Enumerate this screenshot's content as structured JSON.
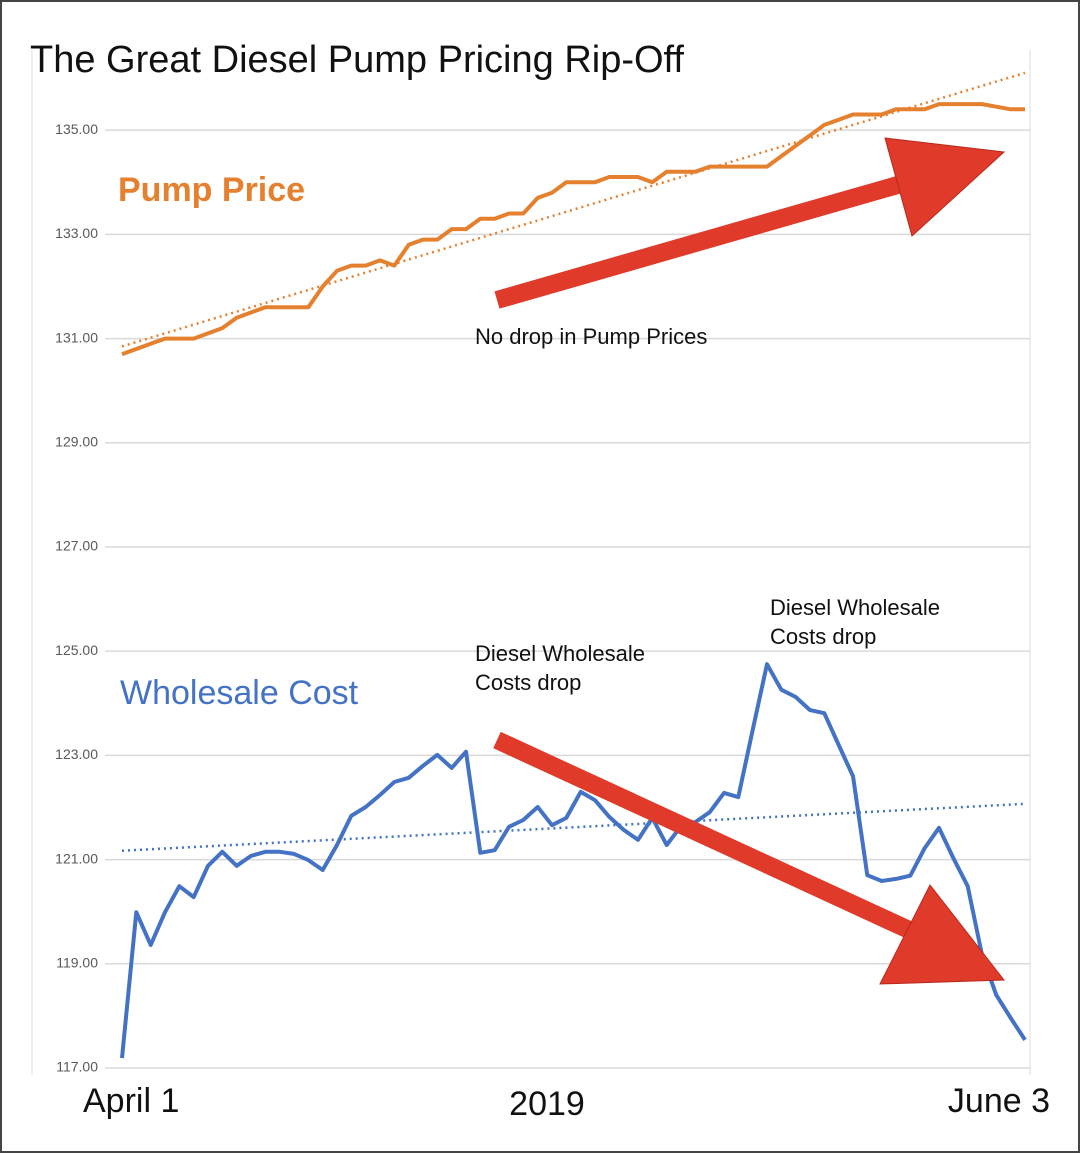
{
  "chart_data": {
    "type": "line",
    "title": "The Great Diesel Pump Pricing Rip-Off",
    "x_axis_label": "2019",
    "categories": [
      "April 1",
      null,
      null,
      null,
      null,
      null,
      null,
      null,
      null,
      null,
      null,
      null,
      null,
      null,
      null,
      null,
      null,
      null,
      null,
      null,
      null,
      null,
      null,
      null,
      null,
      null,
      null,
      null,
      null,
      null,
      null,
      null,
      null,
      null,
      null,
      null,
      null,
      null,
      null,
      null,
      null,
      null,
      null,
      null,
      null,
      null,
      null,
      null,
      null,
      null,
      null,
      null,
      null,
      null,
      null,
      null,
      null,
      null,
      null,
      null,
      null,
      null,
      null,
      "June 3"
    ],
    "series": [
      {
        "name": "Pump Price",
        "color": "#e5802f",
        "values": [
          130.7,
          130.8,
          130.9,
          131.0,
          131.0,
          131.0,
          131.1,
          131.2,
          131.4,
          131.5,
          131.6,
          131.6,
          131.6,
          131.6,
          132.0,
          132.3,
          132.4,
          132.4,
          132.5,
          132.4,
          132.8,
          132.9,
          132.9,
          133.1,
          133.1,
          133.3,
          133.3,
          133.4,
          133.4,
          133.7,
          133.8,
          134.0,
          134.0,
          134.0,
          134.1,
          134.1,
          134.1,
          134.0,
          134.2,
          134.2,
          134.2,
          134.3,
          134.3,
          134.3,
          134.3,
          134.3,
          134.5,
          134.7,
          134.9,
          135.1,
          135.2,
          135.3,
          135.3,
          135.3,
          135.4,
          135.4,
          135.4,
          135.5,
          135.5,
          135.5,
          135.5,
          135.45,
          135.4,
          135.4
        ]
      },
      {
        "name": "Wholesale Cost",
        "color": "#4472c4",
        "values": [
          117.19,
          119.99,
          119.36,
          119.99,
          120.49,
          120.28,
          120.88,
          121.15,
          120.88,
          121.07,
          121.15,
          121.15,
          121.11,
          120.99,
          120.8,
          121.28,
          121.84,
          122.01,
          122.24,
          122.49,
          122.57,
          122.8,
          123.01,
          122.76,
          123.07,
          121.13,
          121.18,
          121.63,
          121.76,
          122.01,
          121.66,
          121.8,
          122.3,
          122.14,
          121.82,
          121.57,
          121.38,
          121.8,
          121.28,
          121.64,
          121.72,
          121.91,
          122.28,
          122.2,
          123.49,
          124.75,
          124.26,
          124.12,
          123.87,
          123.81,
          123.2,
          122.6,
          120.7,
          120.59,
          120.63,
          120.69,
          121.22,
          121.61,
          121.03,
          120.49,
          119.17,
          118.4,
          117.96,
          117.54
        ]
      }
    ],
    "trendlines": [
      {
        "start": 130.85,
        "end": 136.1
      },
      {
        "start": 121.17,
        "end": 122.07
      }
    ],
    "ylim": [
      117,
      136.5
    ],
    "yticks": [
      {
        "value": 117,
        "label": "117.00"
      },
      {
        "value": 119,
        "label": "119.00"
      },
      {
        "value": 121,
        "label": "121.00"
      },
      {
        "value": 123,
        "label": "123.00"
      },
      {
        "value": 125,
        "label": "125.00"
      },
      {
        "value": 127,
        "label": "127.00"
      },
      {
        "value": 129,
        "label": "129.00"
      },
      {
        "value": 131,
        "label": "131.00"
      },
      {
        "value": 133,
        "label": "133.00"
      },
      {
        "value": 135,
        "label": "135.00"
      }
    ],
    "grid": true,
    "annotations": [
      [
        "No drop in Pump Prices"
      ],
      [
        "Diesel Wholesale",
        "Costs drop"
      ],
      [
        "Diesel Wholesale",
        "Costs drop"
      ]
    ]
  }
}
